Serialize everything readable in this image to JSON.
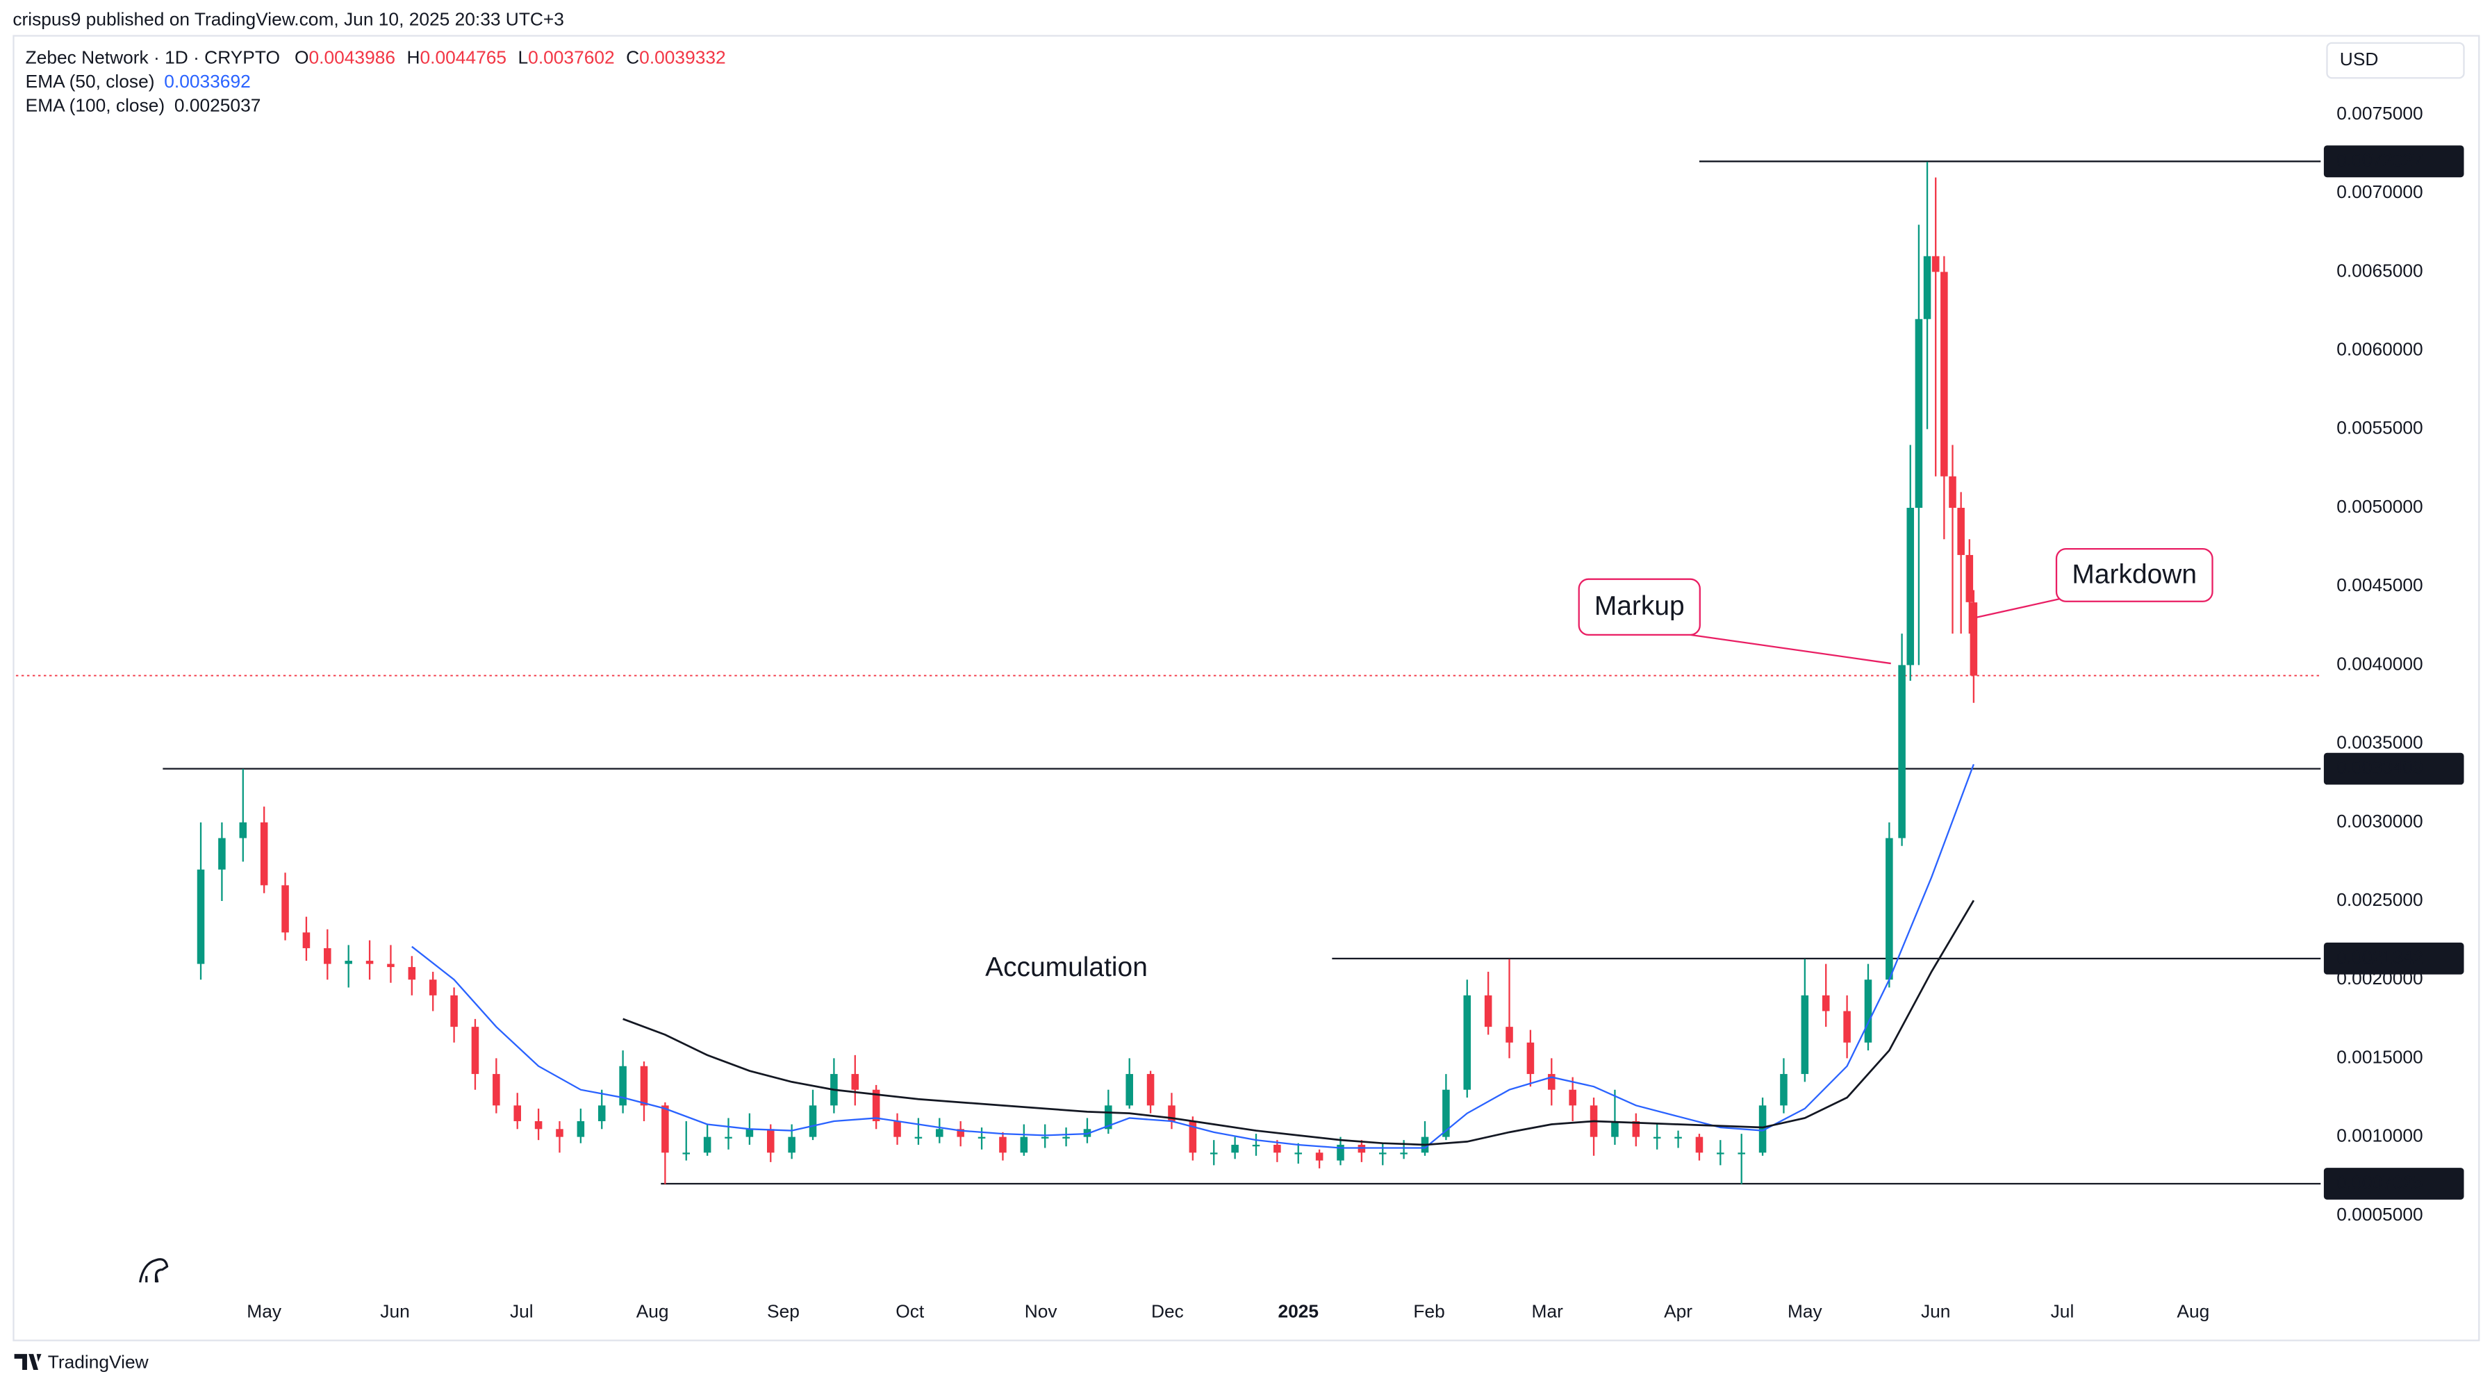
{
  "header": {
    "published": "crispus9 published on TradingView.com, Jun 10, 2025 20:33 UTC+3"
  },
  "footer": {
    "brand": "TradingView"
  },
  "chart_data": {
    "type": "candlestick",
    "title": "Zebec Network · 1D · CRYPTO",
    "ohlc_letters": [
      "O",
      "H",
      "L",
      "C"
    ],
    "currency": "USD",
    "up_color": "#089981",
    "down_color": "#f23645",
    "x": [
      15,
      20,
      25,
      30,
      35,
      40,
      45,
      50,
      55,
      60,
      65,
      70,
      75,
      80,
      85,
      90,
      95,
      100,
      105,
      110,
      115,
      120,
      125,
      130,
      135,
      140,
      145,
      150,
      155,
      160,
      165,
      170,
      175,
      180,
      185,
      190,
      195,
      200,
      205,
      210,
      215,
      220,
      225,
      230,
      235,
      240,
      245,
      250,
      255,
      260,
      265,
      270,
      275,
      280,
      285,
      290,
      295,
      300,
      305,
      310,
      315,
      320,
      325,
      330,
      335,
      340,
      345,
      350,
      355,
      360,
      365,
      370,
      375,
      380,
      385,
      390,
      395,
      400,
      405,
      410,
      415,
      418,
      420,
      422,
      424,
      426,
      428,
      430,
      432,
      434,
      435
    ],
    "open": [
      0.0021,
      0.0027,
      0.0029,
      0.003,
      0.0026,
      0.0023,
      0.0022,
      0.0021,
      0.00212,
      0.0021,
      0.00208,
      0.002,
      0.0019,
      0.0017,
      0.0014,
      0.0012,
      0.0011,
      0.00105,
      0.001,
      0.0011,
      0.0012,
      0.00145,
      0.0012,
      0.0009,
      0.0009,
      0.001,
      0.001,
      0.00105,
      0.0009,
      0.001,
      0.0012,
      0.0014,
      0.0013,
      0.0011,
      0.001,
      0.001,
      0.00105,
      0.001,
      0.001,
      0.0009,
      0.001,
      0.001,
      0.001,
      0.00105,
      0.0012,
      0.0014,
      0.0012,
      0.0011,
      0.0009,
      0.0009,
      0.00095,
      0.00095,
      0.0009,
      0.0009,
      0.00085,
      0.00095,
      0.0009,
      0.0009,
      0.0009,
      0.001,
      0.0013,
      0.0019,
      0.0017,
      0.0016,
      0.0014,
      0.0013,
      0.0012,
      0.001,
      0.0011,
      0.001,
      0.001,
      0.001,
      0.0009,
      0.0009,
      0.0009,
      0.0012,
      0.0014,
      0.0019,
      0.0018,
      0.0016,
      0.002,
      0.0029,
      0.004,
      0.005,
      0.0062,
      0.0066,
      0.0065,
      0.0052,
      0.005,
      0.0047,
      0.0043986
    ],
    "high": [
      0.003,
      0.003,
      0.00334,
      0.0031,
      0.00268,
      0.0024,
      0.00232,
      0.00222,
      0.00225,
      0.00222,
      0.00215,
      0.00205,
      0.00195,
      0.00175,
      0.0015,
      0.00128,
      0.00118,
      0.0011,
      0.00118,
      0.0013,
      0.00155,
      0.00148,
      0.00122,
      0.0011,
      0.00108,
      0.00112,
      0.00115,
      0.00108,
      0.00108,
      0.0013,
      0.0015,
      0.00152,
      0.00133,
      0.00115,
      0.00112,
      0.00112,
      0.0011,
      0.00106,
      0.00103,
      0.00108,
      0.00108,
      0.00106,
      0.00112,
      0.0013,
      0.0015,
      0.00142,
      0.00128,
      0.00113,
      0.00098,
      0.001,
      0.00102,
      0.00098,
      0.00096,
      0.00092,
      0.001,
      0.00098,
      0.00096,
      0.00098,
      0.0011,
      0.0014,
      0.002,
      0.00205,
      0.00213,
      0.00168,
      0.0015,
      0.00138,
      0.00125,
      0.0013,
      0.00115,
      0.00108,
      0.00104,
      0.00102,
      0.00098,
      0.00102,
      0.00125,
      0.0015,
      0.00213,
      0.0021,
      0.0019,
      0.0021,
      0.003,
      0.0042,
      0.0054,
      0.0068,
      0.0072,
      0.0071,
      0.0066,
      0.0054,
      0.0051,
      0.0048,
      0.0044765
    ],
    "low": [
      0.002,
      0.0025,
      0.00275,
      0.00255,
      0.00225,
      0.00212,
      0.002,
      0.00195,
      0.002,
      0.00198,
      0.0019,
      0.0018,
      0.0016,
      0.0013,
      0.00115,
      0.00105,
      0.00098,
      0.0009,
      0.00096,
      0.00105,
      0.00115,
      0.0011,
      0.0007,
      0.00085,
      0.00088,
      0.00092,
      0.00095,
      0.00084,
      0.00086,
      0.00098,
      0.00115,
      0.0012,
      0.00105,
      0.00095,
      0.00095,
      0.00096,
      0.00094,
      0.00092,
      0.00085,
      0.00088,
      0.00093,
      0.00094,
      0.00096,
      0.00102,
      0.00118,
      0.00115,
      0.00105,
      0.00085,
      0.00082,
      0.00086,
      0.00088,
      0.00084,
      0.00083,
      0.0008,
      0.00082,
      0.00084,
      0.00082,
      0.00086,
      0.00088,
      0.00098,
      0.00125,
      0.00165,
      0.0015,
      0.00132,
      0.0012,
      0.0011,
      0.00088,
      0.00095,
      0.00094,
      0.00092,
      0.00093,
      0.00085,
      0.00082,
      0.0007,
      0.00088,
      0.00115,
      0.00135,
      0.0017,
      0.0015,
      0.00155,
      0.00195,
      0.00285,
      0.0039,
      0.004,
      0.0055,
      0.0052,
      0.0048,
      0.0042,
      0.0042,
      0.0042,
      0.0037602
    ],
    "close": [
      0.0027,
      0.0029,
      0.003,
      0.0026,
      0.0023,
      0.0022,
      0.0021,
      0.00212,
      0.0021,
      0.00208,
      0.002,
      0.0019,
      0.0017,
      0.0014,
      0.0012,
      0.0011,
      0.00105,
      0.001,
      0.0011,
      0.0012,
      0.00145,
      0.0012,
      0.0009,
      0.0009,
      0.001,
      0.001,
      0.00105,
      0.0009,
      0.001,
      0.0012,
      0.0014,
      0.0013,
      0.0011,
      0.001,
      0.001,
      0.00105,
      0.001,
      0.001,
      0.0009,
      0.001,
      0.001,
      0.001,
      0.00105,
      0.0012,
      0.0014,
      0.0012,
      0.0011,
      0.0009,
      0.0009,
      0.00095,
      0.00095,
      0.0009,
      0.0009,
      0.00085,
      0.00095,
      0.0009,
      0.0009,
      0.0009,
      0.001,
      0.0013,
      0.0019,
      0.0017,
      0.0016,
      0.0014,
      0.0013,
      0.0012,
      0.001,
      0.0011,
      0.001,
      0.001,
      0.001,
      0.0009,
      0.0009,
      0.0009,
      0.0012,
      0.0014,
      0.0019,
      0.0018,
      0.0016,
      0.002,
      0.0029,
      0.004,
      0.005,
      0.0062,
      0.0066,
      0.0065,
      0.0052,
      0.005,
      0.0047,
      0.0044,
      0.0039332
    ],
    "series": [
      {
        "name": "EMA (50, close)",
        "color": "#2962ff",
        "x": [
          65,
          75,
          85,
          95,
          105,
          115,
          125,
          135,
          145,
          155,
          165,
          175,
          185,
          195,
          205,
          215,
          225,
          235,
          245,
          255,
          265,
          275,
          285,
          295,
          305,
          315,
          325,
          335,
          345,
          355,
          365,
          375,
          385,
          395,
          405,
          415,
          425,
          435
        ],
        "values": [
          0.00221,
          0.002,
          0.0017,
          0.00145,
          0.0013,
          0.00125,
          0.00118,
          0.00108,
          0.00105,
          0.00104,
          0.0011,
          0.00112,
          0.00108,
          0.00104,
          0.00102,
          0.00101,
          0.00102,
          0.00112,
          0.0011,
          0.00103,
          0.00098,
          0.00095,
          0.00093,
          0.00093,
          0.00093,
          0.00115,
          0.0013,
          0.00138,
          0.00132,
          0.0012,
          0.00113,
          0.00106,
          0.00104,
          0.00118,
          0.00145,
          0.002,
          0.00265,
          0.0033692
        ]
      },
      {
        "name": "EMA (100, close)",
        "color": "#131722",
        "x": [
          115,
          125,
          135,
          145,
          155,
          165,
          175,
          185,
          195,
          205,
          215,
          225,
          235,
          245,
          255,
          265,
          275,
          285,
          295,
          305,
          315,
          325,
          335,
          345,
          355,
          365,
          375,
          385,
          395,
          405,
          415,
          425,
          435
        ],
        "values": [
          0.00175,
          0.00165,
          0.00152,
          0.00142,
          0.00135,
          0.0013,
          0.00127,
          0.00124,
          0.00122,
          0.0012,
          0.00118,
          0.00116,
          0.00115,
          0.00112,
          0.00108,
          0.00104,
          0.00101,
          0.00098,
          0.00096,
          0.00095,
          0.00097,
          0.00103,
          0.00108,
          0.0011,
          0.00109,
          0.00108,
          0.00107,
          0.00106,
          0.00112,
          0.00125,
          0.00155,
          0.00205,
          0.0025037
        ]
      }
    ],
    "levels": [
      {
        "value": 0.0072027,
        "x_start": 370
      },
      {
        "value": 0.0033409,
        "x_start": 6
      },
      {
        "value": 0.0021342,
        "x_start": 283
      },
      {
        "value": 0.0007025,
        "x_start": 124
      }
    ],
    "annotations": [
      {
        "text": "Markup"
      },
      {
        "text": "Markdown"
      },
      {
        "text": "Accumulation"
      }
    ],
    "last_price_line": true,
    "xlim": [
      -28.8,
      517.2
    ],
    "ylim": [
      5.5e-05,
      0.007986
    ],
    "xticks": [
      {
        "value": 30,
        "label": "May"
      },
      {
        "value": 61,
        "label": "Jun"
      },
      {
        "value": 91,
        "label": "Jul"
      },
      {
        "value": 122,
        "label": "Aug"
      },
      {
        "value": 153,
        "label": "Sep"
      },
      {
        "value": 183,
        "label": "Oct"
      },
      {
        "value": 214,
        "label": "Nov"
      },
      {
        "value": 244,
        "label": "Dec"
      },
      {
        "value": 275,
        "label": "2025"
      },
      {
        "value": 306,
        "label": "Feb"
      },
      {
        "value": 334,
        "label": "Mar"
      },
      {
        "value": 365,
        "label": "Apr"
      },
      {
        "value": 395,
        "label": "May"
      },
      {
        "value": 426,
        "label": "Jun"
      },
      {
        "value": 456,
        "label": "Jul"
      },
      {
        "value": 487,
        "label": "Aug"
      }
    ],
    "yticks": [
      {
        "value": 0.0005,
        "label": "0.0005000"
      },
      {
        "value": 0.001,
        "label": "0.0010000"
      },
      {
        "value": 0.0015,
        "label": "0.0015000"
      },
      {
        "value": 0.002,
        "label": "0.0020000"
      },
      {
        "value": 0.0025,
        "label": "0.0025000"
      },
      {
        "value": 0.003,
        "label": "0.0030000"
      },
      {
        "value": 0.0035,
        "label": "0.0035000"
      },
      {
        "value": 0.004,
        "label": "0.0040000"
      },
      {
        "value": 0.0045,
        "label": "0.0045000"
      },
      {
        "value": 0.005,
        "label": "0.0050000"
      },
      {
        "value": 0.0055,
        "label": "0.0055000"
      },
      {
        "value": 0.006,
        "label": "0.0060000"
      },
      {
        "value": 0.0065,
        "label": "0.0065000"
      },
      {
        "value": 0.007,
        "label": "0.0070000"
      },
      {
        "value": 0.0075,
        "label": "0.0075000"
      }
    ]
  }
}
